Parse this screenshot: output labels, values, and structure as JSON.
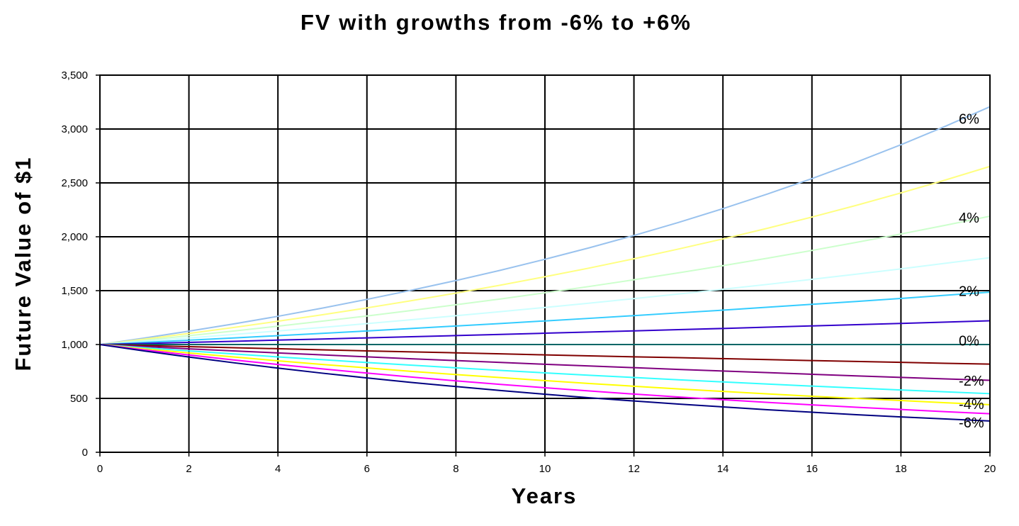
{
  "chart_data": {
    "type": "line",
    "title": "FV with growths from -6% to +6%",
    "xlabel": "Years",
    "ylabel": "Future Value of $1",
    "xlim": [
      0,
      20
    ],
    "ylim": [
      0,
      3500
    ],
    "x_ticks": [
      "0",
      "2",
      "4",
      "6",
      "8",
      "10",
      "12",
      "14",
      "16",
      "18",
      "20"
    ],
    "y_ticks": [
      "0",
      "500",
      "1,000",
      "1,500",
      "2,000",
      "2,500",
      "3,000",
      "3,500"
    ],
    "grid": true,
    "x": [
      0,
      1,
      2,
      3,
      4,
      5,
      6,
      7,
      8,
      9,
      10,
      11,
      12,
      13,
      14,
      15,
      16,
      17,
      18,
      19,
      20
    ],
    "series": [
      {
        "color": "#99C2EE",
        "values": [
          1000,
          1060,
          1124,
          1191,
          1262,
          1338,
          1419,
          1504,
          1594,
          1689,
          1791,
          1898,
          2012,
          2133,
          2261,
          2397,
          2540,
          2693,
          2854,
          3026,
          3207
        ]
      },
      {
        "color": "#FFFF80",
        "values": [
          1000,
          1050,
          1103,
          1158,
          1216,
          1276,
          1340,
          1407,
          1477,
          1551,
          1629,
          1710,
          1796,
          1886,
          1980,
          2079,
          2183,
          2292,
          2407,
          2527,
          2653
        ]
      },
      {
        "color": "#CCFFCC",
        "values": [
          1000,
          1040,
          1082,
          1125,
          1170,
          1217,
          1265,
          1316,
          1369,
          1423,
          1480,
          1539,
          1601,
          1665,
          1732,
          1801,
          1873,
          1948,
          2026,
          2107,
          2191
        ]
      },
      {
        "color": "#CCFFFF",
        "values": [
          1000,
          1030,
          1061,
          1093,
          1126,
          1159,
          1194,
          1230,
          1267,
          1305,
          1344,
          1384,
          1426,
          1469,
          1513,
          1558,
          1605,
          1653,
          1702,
          1754,
          1806
        ]
      },
      {
        "color": "#33CCFF",
        "values": [
          1000,
          1020,
          1040,
          1061,
          1082,
          1104,
          1126,
          1149,
          1172,
          1195,
          1219,
          1243,
          1268,
          1294,
          1319,
          1346,
          1373,
          1400,
          1428,
          1457,
          1486
        ]
      },
      {
        "color": "#3300CC",
        "values": [
          1000,
          1010,
          1020,
          1030,
          1041,
          1051,
          1062,
          1072,
          1083,
          1094,
          1105,
          1116,
          1127,
          1138,
          1149,
          1161,
          1173,
          1184,
          1196,
          1208,
          1220
        ]
      },
      {
        "color": "#006666",
        "values": [
          1000,
          1000,
          1000,
          1000,
          1000,
          1000,
          1000,
          1000,
          1000,
          1000,
          1000,
          1000,
          1000,
          1000,
          1000,
          1000,
          1000,
          1000,
          1000,
          1000,
          1000
        ]
      },
      {
        "color": "#800000",
        "values": [
          1000,
          990,
          980,
          970,
          961,
          951,
          941,
          932,
          923,
          914,
          904,
          895,
          886,
          878,
          869,
          860,
          851,
          843,
          835,
          826,
          818
        ]
      },
      {
        "color": "#800080",
        "values": [
          1000,
          980,
          960,
          941,
          922,
          904,
          886,
          868,
          851,
          834,
          817,
          801,
          785,
          769,
          754,
          739,
          724,
          709,
          695,
          681,
          668
        ]
      },
      {
        "color": "#33FFFF",
        "values": [
          1000,
          970,
          941,
          913,
          885,
          859,
          833,
          808,
          784,
          760,
          737,
          715,
          694,
          673,
          653,
          633,
          614,
          596,
          578,
          561,
          544
        ]
      },
      {
        "color": "#FFFF00",
        "values": [
          1000,
          960,
          922,
          885,
          849,
          815,
          783,
          751,
          721,
          693,
          665,
          638,
          613,
          588,
          565,
          542,
          520,
          500,
          480,
          460,
          442
        ]
      },
      {
        "color": "#FF00FF",
        "values": [
          1000,
          950,
          903,
          857,
          815,
          774,
          735,
          698,
          663,
          630,
          599,
          569,
          540,
          513,
          488,
          463,
          440,
          418,
          397,
          377,
          358
        ]
      },
      {
        "color": "#000080",
        "values": [
          1000,
          940,
          884,
          831,
          781,
          734,
          690,
          648,
          610,
          573,
          539,
          506,
          476,
          447,
          421,
          395,
          372,
          349,
          328,
          309,
          290
        ]
      }
    ],
    "annotations": [
      {
        "text": "6%",
        "x": 19.3,
        "y": 3050
      },
      {
        "text": "4%",
        "x": 19.3,
        "y": 2130
      },
      {
        "text": "2%",
        "x": 19.3,
        "y": 1450
      },
      {
        "text": "0%",
        "x": 19.3,
        "y": 990
      },
      {
        "text": "-2%",
        "x": 19.3,
        "y": 620
      },
      {
        "text": "-4%",
        "x": 19.3,
        "y": 400
      },
      {
        "text": "-6%",
        "x": 19.3,
        "y": 230
      }
    ]
  }
}
